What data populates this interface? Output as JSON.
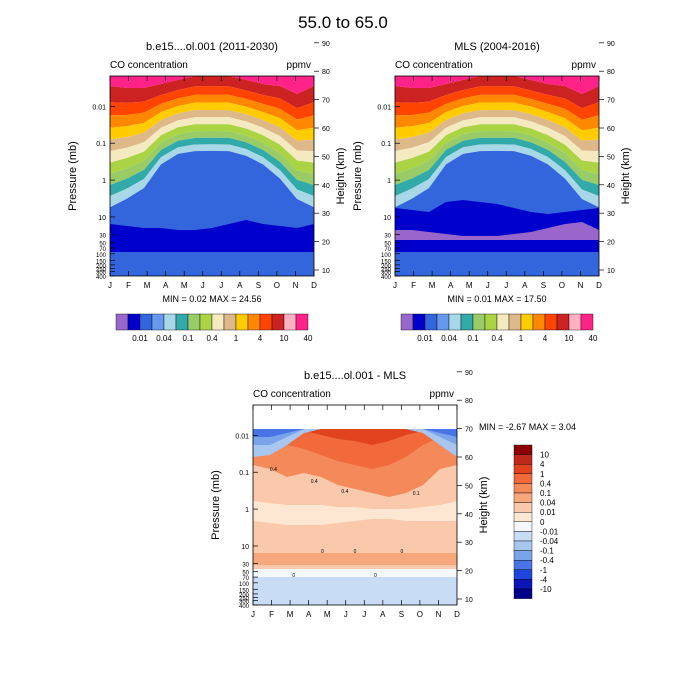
{
  "figure": {
    "title": "55.0 to  65.0"
  },
  "chart_data": [
    {
      "type": "heatmap",
      "title": "b.e15....ol.001 (2011-2030)",
      "left_label": "CO concentration",
      "units": "ppmv",
      "xlabel": "",
      "ylabel": "Pressure (mb)",
      "ylabel_right": "Height (km)",
      "xtick_labels": [
        "J",
        "F",
        "M",
        "A",
        "M",
        "J",
        "J",
        "A",
        "S",
        "O",
        "N",
        "D"
      ],
      "ytick_labels": [
        "0.01",
        "0.1",
        "1",
        "10",
        "30",
        "50",
        "70",
        "100",
        "150",
        "200",
        "250",
        "300",
        "400"
      ],
      "ytick_values": [
        0.01,
        0.1,
        1,
        10,
        30,
        50,
        70,
        100,
        150,
        200,
        250,
        300,
        400
      ],
      "right_tick_labels": [
        "10",
        "20",
        "30",
        "40",
        "50",
        "60",
        "70",
        "80",
        "90"
      ],
      "ylim": [
        400,
        0.0015
      ],
      "stats": "MIN =  0.02  MAX = 24.56",
      "colorbar": {
        "labels": [
          "0.01",
          "0.04",
          "0.1",
          "0.4",
          "1",
          "4",
          "10",
          "40"
        ],
        "colors": [
          "#9966cc",
          "#0000cc",
          "#3366dd",
          "#6699ee",
          "#a8d8e8",
          "#33aaaa",
          "#99cc66",
          "#aad444",
          "#f5e9c0",
          "#ddb888",
          "#ffcc00",
          "#ff8800",
          "#ff4400",
          "#cc2222",
          "#ffb0c0",
          "#ff2288"
        ]
      },
      "summary": "Values peak (~10-25 ppmv) in the upper mesosphere during winter months (J, D) and decrease to ~0.01-0.04 ppmv in the lower stratosphere."
    },
    {
      "type": "heatmap",
      "title": "MLS (2004-2016)",
      "left_label": "CO concentration",
      "units": "ppmv",
      "xlabel": "",
      "ylabel": "Pressure (mb)",
      "ylabel_right": "Height (km)",
      "xtick_labels": [
        "J",
        "F",
        "M",
        "A",
        "M",
        "J",
        "J",
        "A",
        "S",
        "O",
        "N",
        "D"
      ],
      "ytick_labels": [
        "0.01",
        "0.1",
        "1",
        "10",
        "30",
        "50",
        "70",
        "100",
        "150",
        "200",
        "250",
        "300",
        "400"
      ],
      "ytick_values": [
        0.01,
        0.1,
        1,
        10,
        30,
        50,
        70,
        100,
        150,
        200,
        250,
        300,
        400
      ],
      "right_tick_labels": [
        "10",
        "20",
        "30",
        "40",
        "50",
        "60",
        "70",
        "80",
        "90"
      ],
      "ylim": [
        400,
        0.0015
      ],
      "stats": "MIN =  0.01  MAX = 17.50",
      "colorbar": {
        "labels": [
          "0.01",
          "0.04",
          "0.1",
          "0.4",
          "1",
          "4",
          "10",
          "40"
        ],
        "colors": [
          "#9966cc",
          "#0000cc",
          "#3366dd",
          "#6699ee",
          "#a8d8e8",
          "#33aaaa",
          "#99cc66",
          "#aad444",
          "#f5e9c0",
          "#ddb888",
          "#ffcc00",
          "#ff8800",
          "#ff4400",
          "#cc2222",
          "#ffb0c0",
          "#ff2288"
        ]
      },
      "summary": "Observed CO; data available up to ~0.01 mb; high values in winter upper mesosphere, low values (0.01-0.04) in lower stratosphere."
    },
    {
      "type": "heatmap",
      "title": "b.e15....ol.001 - MLS",
      "left_label": "CO concentration",
      "units": "ppmv",
      "xlabel": "",
      "ylabel": "Pressure (mb)",
      "ylabel_right": "Height (km)",
      "xtick_labels": [
        "J",
        "F",
        "M",
        "A",
        "M",
        "J",
        "J",
        "A",
        "S",
        "O",
        "N",
        "D"
      ],
      "ytick_labels": [
        "0.01",
        "0.1",
        "1",
        "10",
        "30",
        "50",
        "70",
        "100",
        "150",
        "200",
        "250",
        "300",
        "400"
      ],
      "ytick_values": [
        0.01,
        0.1,
        1,
        10,
        30,
        50,
        70,
        100,
        150,
        200,
        250,
        300,
        400
      ],
      "right_tick_labels": [
        "10",
        "20",
        "30",
        "40",
        "50",
        "60",
        "70",
        "80",
        "90"
      ],
      "ylim": [
        400,
        0.0015
      ],
      "stats": "MIN = -2.67  MAX =   3.04",
      "contour_labels": [
        "0",
        "0",
        "0",
        "0",
        "0",
        "0.4",
        "0.4",
        "0.4",
        "0.1"
      ],
      "colorbar": {
        "labels": [
          "10",
          "4",
          "1",
          "0.4",
          "0.1",
          "0.04",
          "0.01",
          "0",
          "-0.01",
          "-0.04",
          "-0.1",
          "-0.4",
          "-1",
          "-4",
          "-10"
        ],
        "colors": [
          "#8b0000",
          "#c0281c",
          "#e0431e",
          "#f26a3c",
          "#f4895a",
          "#f7a77c",
          "#fac8aa",
          "#fde6d2",
          "#f4f8fb",
          "#c8dcf5",
          "#a7c6f0",
          "#7aa4ea",
          "#4a74e6",
          "#2044dc",
          "#0a16b8",
          "#00008b"
        ]
      },
      "summary": "Difference: model higher than MLS (positive, 0.01-1 ppmv) over most of the domain; negative (-0.1 to -4) near the top in early winter and late autumn."
    }
  ]
}
